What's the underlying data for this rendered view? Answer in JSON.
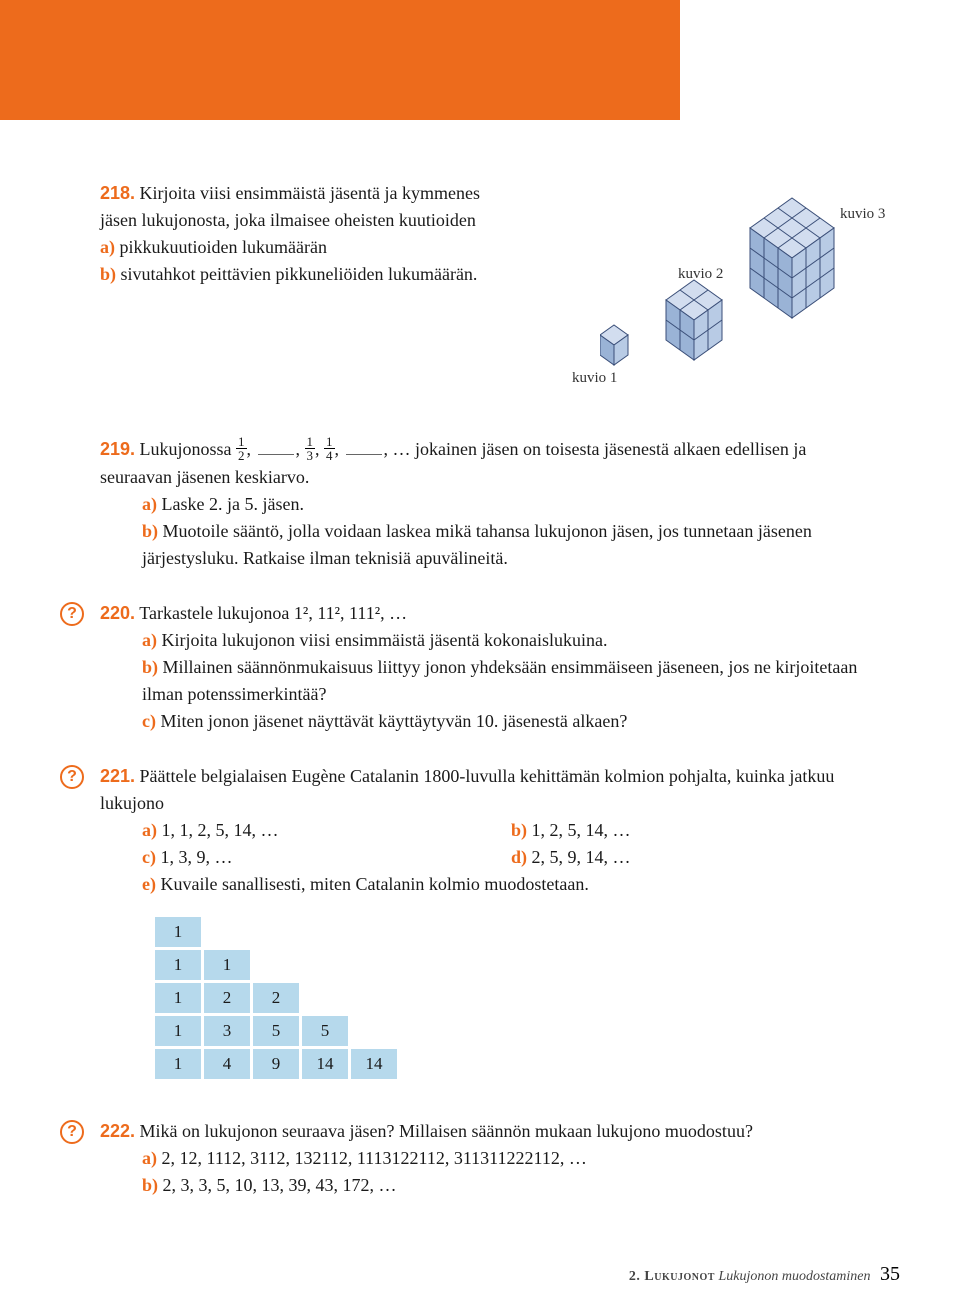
{
  "header": {
    "bar_color": "#ed6b1c"
  },
  "ex218": {
    "num": "218.",
    "intro": "Kirjoita viisi ensimmäistä jäsentä ja kymmenes jäsen lukujonosta, joka ilmaisee oheisten kuutioiden",
    "a": "pikkukuutioiden lukumäärän",
    "b": "sivutahkot peittävien pikkuneliöiden lukumäärän.",
    "labels": {
      "k1": "kuvio 1",
      "k2": "kuvio 2",
      "k3": "kuvio 3"
    }
  },
  "ex219": {
    "num": "219.",
    "lead": "Lukujonossa",
    "tail": "… jokainen jäsen on toisesta jäsenestä alkaen edellisen ja seuraavan jäsenen keskiarvo.",
    "a": "Laske 2. ja 5. jäsen.",
    "b": "Muotoile sääntö, jolla voidaan laskea mikä tahansa lukujonon jäsen, jos tunnetaan jäsenen järjestysluku. Ratkaise ilman teknisiä apuvälineitä."
  },
  "ex220": {
    "num": "220.",
    "intro": "Tarkastele lukujonoa 1², 11², 111², …",
    "a": "Kirjoita lukujonon viisi ensimmäistä jäsentä kokonaislukuina.",
    "b": "Millainen säännönmukaisuus liittyy jonon yhdeksään ensimmäiseen jäseneen, jos ne kirjoitetaan ilman potenssimerkintää?",
    "c": "Miten jonon jäsenet näyttävät käyttäytyvän 10. jäsenestä alkaen?"
  },
  "ex221": {
    "num": "221.",
    "intro": "Päättele belgialaisen Eugène Catalanin 1800-luvulla kehittämän kolmion pohjalta, kuinka jatkuu lukujono",
    "a": "1, 1, 2, 5, 14, …",
    "b": "1, 2, 5, 14, …",
    "c": "1, 3, 9, …",
    "d": "2, 5, 9, 14, …",
    "e": "Kuvaile sanallisesti, miten Catalanin kolmio muodostetaan.",
    "triangle": [
      [
        1
      ],
      [
        1,
        1
      ],
      [
        1,
        2,
        2
      ],
      [
        1,
        3,
        5,
        5
      ],
      [
        1,
        4,
        9,
        14,
        14
      ]
    ],
    "cell_bg": "#b6d9ec"
  },
  "ex222": {
    "num": "222.",
    "intro": "Mikä on lukujonon seuraava jäsen? Millaisen säännön mukaan lukujono muodostuu?",
    "a": "2, 12, 1112, 3112, 132112, 1113122112, 311311222112, …",
    "b": "2, 3, 3, 5, 10, 13, 39, 43, 172, …"
  },
  "footer": {
    "chapter": "2. Lukujonot",
    "section": "Lukujonon muodostaminen",
    "page": "35"
  },
  "labels": {
    "a": "a)",
    "b": "b)",
    "c": "c)",
    "d": "d)",
    "e": "e)"
  },
  "cubes": {
    "face_fill": "#b8cbe5",
    "edge": "#3a4e78",
    "top_fill": "#d2ddef",
    "side_fill": "#9ab3d6"
  }
}
